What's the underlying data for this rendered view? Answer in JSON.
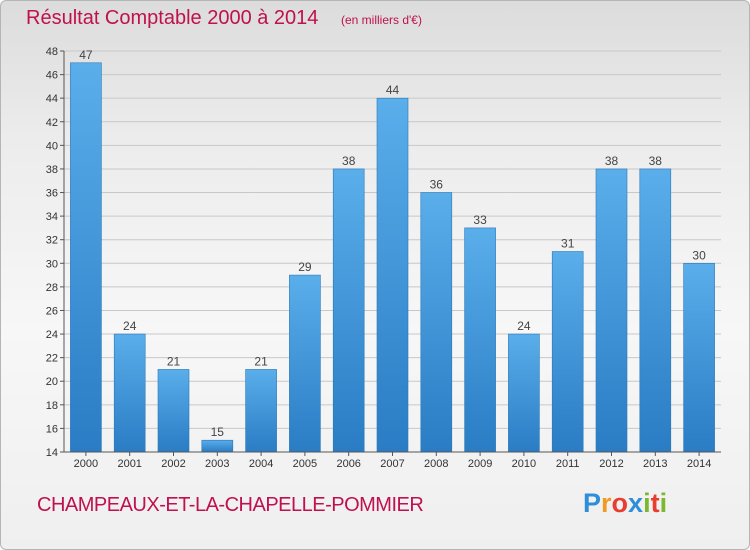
{
  "header": {
    "title": "Résultat Comptable 2000 à 2014",
    "subtitle": "(en milliers d'€)"
  },
  "footer": {
    "commune": "CHAMPEAUX-ET-LA-CHAPELLE-POMMIER",
    "logo": {
      "letters": [
        "P",
        "r",
        "o",
        "x",
        "i",
        "t",
        "i"
      ],
      "colors": [
        "#2e8fd8",
        "#f29a1f",
        "#e83d2f",
        "#2e8fd8",
        "#7bb72f",
        "#e83d2f",
        "#7bb72f"
      ]
    }
  },
  "chart_data": {
    "type": "bar",
    "title": "Résultat Comptable 2000 à 2014",
    "subtitle": "(en milliers d'€)",
    "categories": [
      "2000",
      "2001",
      "2002",
      "2003",
      "2004",
      "2005",
      "2006",
      "2007",
      "2008",
      "2009",
      "2010",
      "2011",
      "2012",
      "2013",
      "2014"
    ],
    "values": [
      47,
      24,
      21,
      15,
      21,
      29,
      38,
      44,
      36,
      33,
      24,
      31,
      38,
      38,
      30
    ],
    "ylim": [
      14,
      48
    ],
    "yticks": [
      14,
      16,
      18,
      20,
      22,
      24,
      26,
      28,
      30,
      32,
      34,
      36,
      38,
      40,
      42,
      44,
      46,
      48
    ],
    "grid": true,
    "bar_color": "#4a9ee0",
    "label_color": "#444444"
  }
}
